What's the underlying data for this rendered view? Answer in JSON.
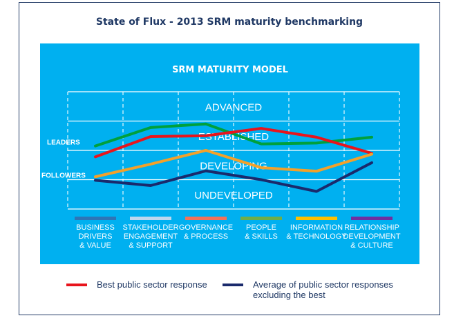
{
  "title": "State of Flux - 2013 SRM maturity benchmarking",
  "chart_data": {
    "type": "line",
    "title": "SRM MATURITY MODEL",
    "levels": [
      "UNDEVELOPED",
      "DEVELOPING",
      "ESTABLISHED",
      "ADVANCED"
    ],
    "row_labels": {
      "leaders": "LEADERS",
      "followers": "FOLLOWERS"
    },
    "categories": [
      {
        "label": "BUSINESS\nDRIVERS\n& VALUE",
        "color": "#2e75b6"
      },
      {
        "label": "STAKEHOLDER\nENGAGEMENT\n& SUPPORT",
        "color": "#bdd7ee"
      },
      {
        "label": "GOVERNANCE\n& PROCESS",
        "color": "#f4725a"
      },
      {
        "label": "PEOPLE\n& SKILLS",
        "color": "#70ad47"
      },
      {
        "label": "INFORMATION\n& TECHNOLOGY",
        "color": "#ffc000"
      },
      {
        "label": "RELATIONSHIP\nDEVELOPMENT\n& CULTURE",
        "color": "#7030a0"
      }
    ],
    "ylim": [
      0,
      4
    ],
    "series": [
      {
        "role": "leaders",
        "color": "#00a03c",
        "values": [
          2.15,
          2.78,
          2.9,
          2.22,
          2.25,
          2.45
        ]
      },
      {
        "role": "best",
        "color": "#e8141c",
        "values": [
          1.78,
          2.47,
          2.5,
          2.75,
          2.45,
          1.9
        ]
      },
      {
        "role": "followers",
        "color": "#f3a12a",
        "values": [
          1.1,
          1.53,
          2.0,
          1.41,
          1.29,
          1.87
        ]
      },
      {
        "role": "average",
        "color": "#1a2a6c",
        "values": [
          0.98,
          0.8,
          1.3,
          1.0,
          0.6,
          1.58
        ]
      }
    ],
    "legend": [
      {
        "label": "Best public sector response",
        "color": "#e8141c"
      },
      {
        "label": "Average of public sector responses\nexcluding the best",
        "color": "#1a2a6c"
      }
    ]
  }
}
